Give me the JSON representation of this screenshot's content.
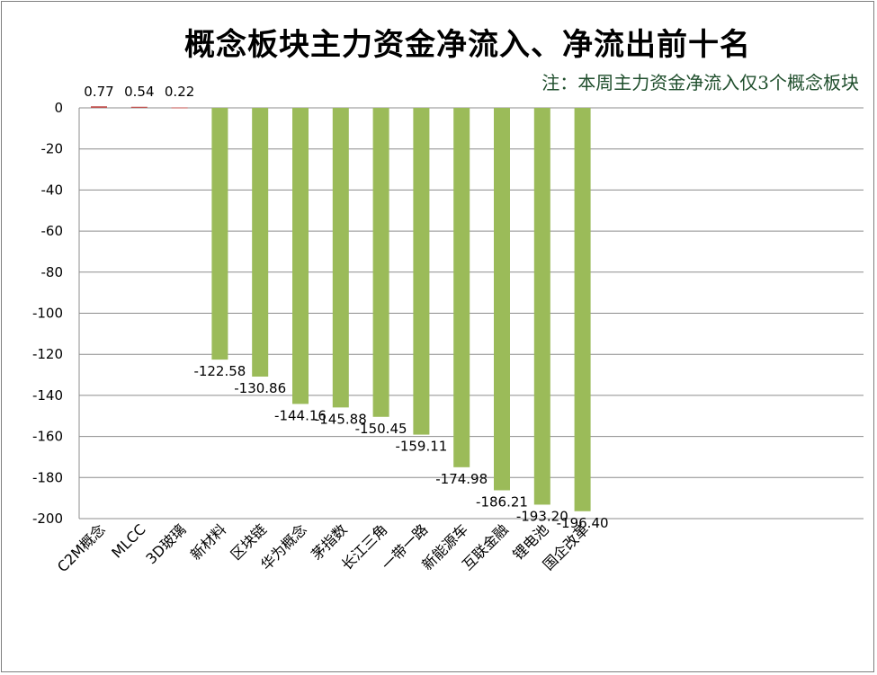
{
  "chart_data": {
    "type": "bar",
    "title": "概念板块主力资金净流入、净流出前十名",
    "annotation": "注：本周主力资金净流入仅3个概念板块",
    "categories": [
      "C2M概念",
      "MLCC",
      "3D玻璃",
      "新材料",
      "区块链",
      "华为概念",
      "茅指数",
      "长江三角",
      "一带一路",
      "新能源车",
      "互联金融",
      "锂电池",
      "国企改革"
    ],
    "values": [
      0.77,
      0.54,
      0.22,
      -122.58,
      -130.86,
      -144.16,
      -145.88,
      -150.45,
      -159.11,
      -174.98,
      -186.21,
      -193.2,
      -196.4
    ],
    "data_labels": [
      "0.77",
      "0.54",
      "0.22",
      "-122.58",
      "-130.86",
      "-144.16",
      "-145.88",
      "-150.45",
      "-159.11",
      "-174.98",
      "-186.21",
      "-193.20",
      "-196.40"
    ],
    "y_ticks": [
      "0",
      "-20",
      "-40",
      "-60",
      "-80",
      "-100",
      "-120",
      "-140",
      "-160",
      "-180",
      "-200"
    ],
    "ylim": [
      -200,
      0
    ],
    "grid": true,
    "legend": "none",
    "colors": {
      "negative": "#9bbb59",
      "positive": "#c0504d"
    }
  }
}
